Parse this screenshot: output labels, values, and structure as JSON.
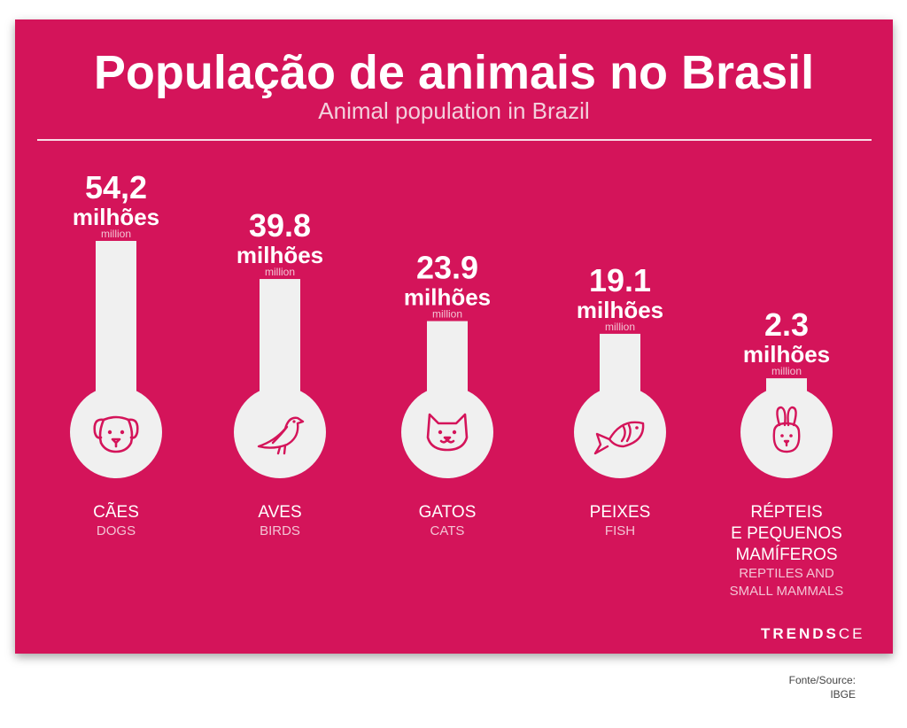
{
  "title": "População de animais no Brasil",
  "subtitle": "Animal population in Brazil",
  "brand": {
    "part1": "TRENDS",
    "part2": "CE"
  },
  "source": {
    "label": "Fonte/Source:",
    "value": "IBGE"
  },
  "colors": {
    "background": "#d4145a",
    "bar": "#f0f0f0",
    "icon": "#d4145a",
    "text": "#ffffff",
    "subtext": "#f3c4d4"
  },
  "chart_data": {
    "type": "bar",
    "title": "População de animais no Brasil",
    "subtitle": "Animal population in Brazil",
    "unit": "milhões",
    "unit_en": "million",
    "grid": false,
    "ylim": [
      0,
      54.2
    ],
    "categories": [
      "CÃES",
      "AVES",
      "GATOS",
      "PEIXES",
      "RÉPTEIS E PEQUENOS MAMÍFEROS"
    ],
    "series": [
      {
        "values": [
          54.2,
          39.8,
          23.9,
          19.1,
          2.3
        ]
      }
    ],
    "items": [
      {
        "value_label": "54,2",
        "value": 54.2,
        "unit": "milhões",
        "unit_en": "million",
        "label_lines": [
          "CÃES"
        ],
        "label_en_lines": [
          "DOGS"
        ],
        "icon": "dog-icon"
      },
      {
        "value_label": "39.8",
        "value": 39.8,
        "unit": "milhões",
        "unit_en": "million",
        "label_lines": [
          "AVES"
        ],
        "label_en_lines": [
          "BIRDS"
        ],
        "icon": "bird-icon"
      },
      {
        "value_label": "23.9",
        "value": 23.9,
        "unit": "milhões",
        "unit_en": "million",
        "label_lines": [
          "GATOS"
        ],
        "label_en_lines": [
          "CATS"
        ],
        "icon": "cat-icon"
      },
      {
        "value_label": "19.1",
        "value": 19.1,
        "unit": "milhões",
        "unit_en": "million",
        "label_lines": [
          "PEIXES"
        ],
        "label_en_lines": [
          "FISH"
        ],
        "icon": "fish-icon"
      },
      {
        "value_label": "2.3",
        "value": 2.3,
        "unit": "milhões",
        "unit_en": "million",
        "label_lines": [
          "RÉPTEIS",
          "E PEQUENOS",
          "MAMÍFEROS"
        ],
        "label_en_lines": [
          "REPTILES AND",
          "SMALL MAMMALS"
        ],
        "icon": "rabbit-icon"
      }
    ]
  }
}
